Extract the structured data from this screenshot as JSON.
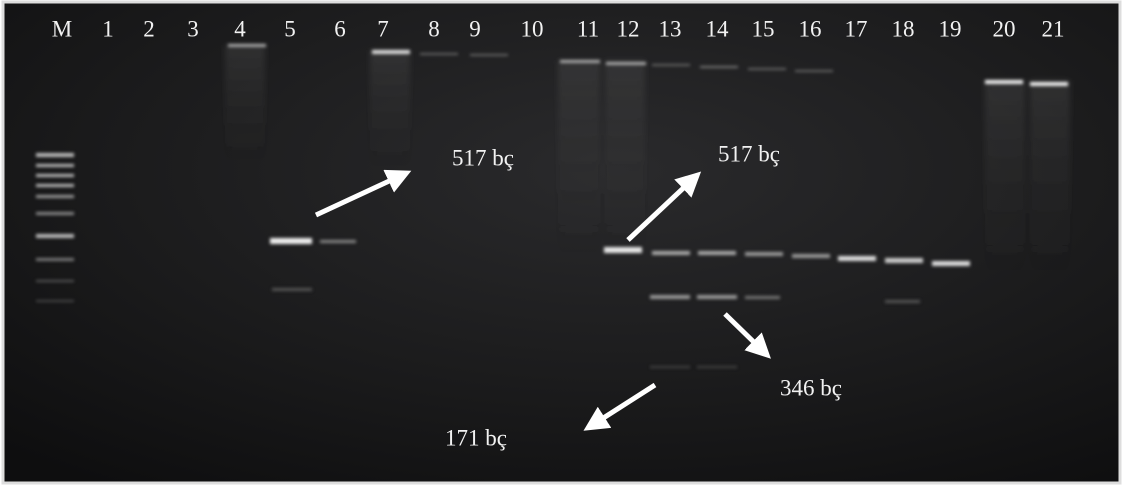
{
  "lanes": [
    "M",
    "1",
    "2",
    "3",
    "4",
    "5",
    "6",
    "7",
    "8",
    "9",
    "10",
    "11",
    "12",
    "13",
    "14",
    "15",
    "16",
    "17",
    "18",
    "19",
    "20",
    "21"
  ],
  "annotations": [
    "517 bç",
    "517 bç",
    "346 bç",
    "171 bç"
  ]
}
